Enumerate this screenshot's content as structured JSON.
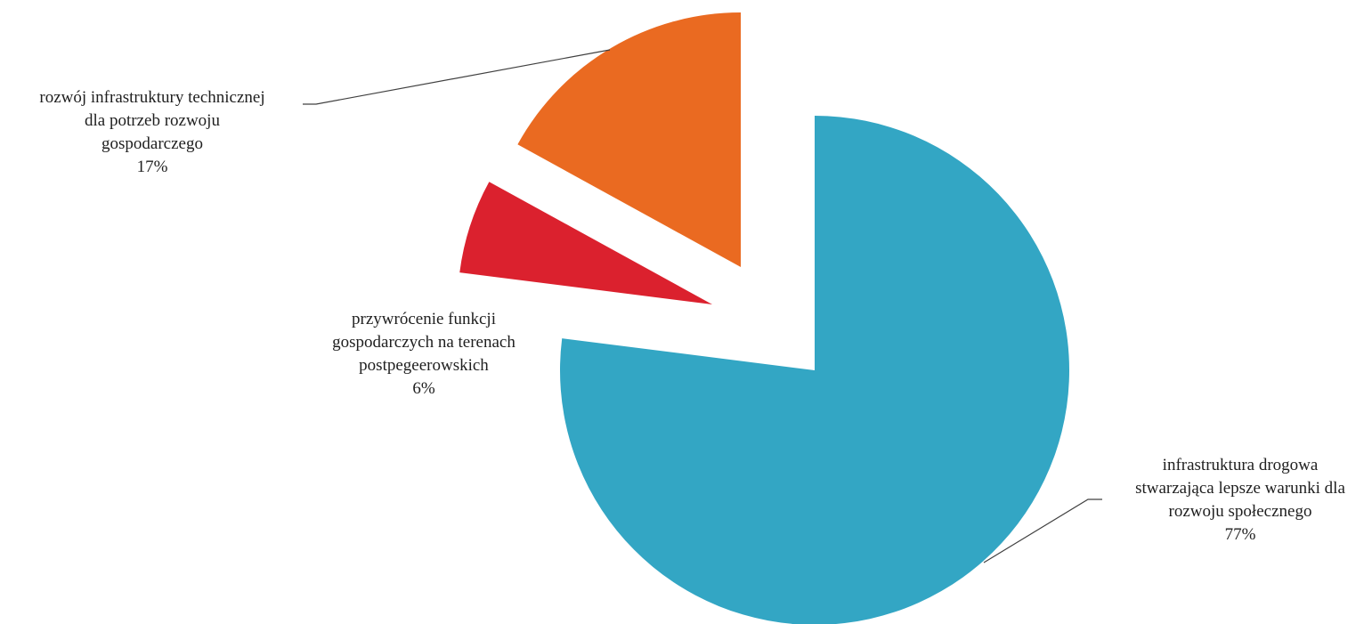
{
  "chart_data": {
    "type": "pie",
    "exploded": true,
    "title": "",
    "slices": [
      {
        "label_lines": [
          "infrastruktura  drogowa",
          "stwarzająca lepsze warunki dla",
          "rozwoju społecznego"
        ],
        "value": 77,
        "percent_label": "77%",
        "color": "#33A6C4"
      },
      {
        "label_lines": [
          "przywrócenie  funkcji",
          "gospodarczych na terenach",
          "postpegeerowskich"
        ],
        "value": 6,
        "percent_label": "6%",
        "color": "#DB212E"
      },
      {
        "label_lines": [
          "rozwój infrastruktury  technicznej",
          "dla  potrzeb rozwoju",
          "gospodarczego"
        ],
        "value": 17,
        "percent_label": "17%",
        "color": "#EA6A21"
      }
    ],
    "start_angle": "12 o'clock",
    "direction": "clockwise"
  }
}
